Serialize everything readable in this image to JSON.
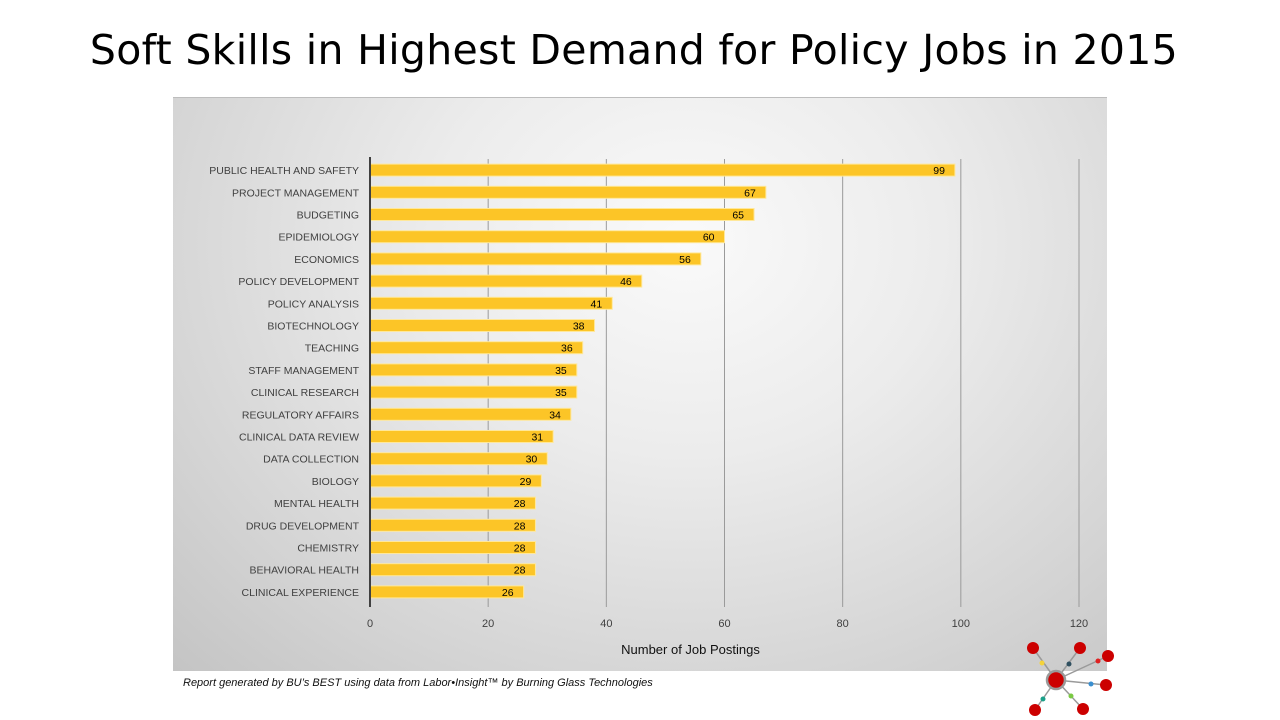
{
  "page": {
    "title": "Soft Skills in Highest Demand for Policy Jobs in 2015",
    "footer": "Report generated by BU’s BEST using data from Labor•Insight™ by Burning Glass Technologies",
    "logo_icon": "network-hub-icon"
  },
  "colors": {
    "bar": "#FCC527",
    "bar_border": "#FFE89A",
    "axis": "#404040",
    "gridline": "#9a9a9a",
    "label_text": "#404040",
    "value_text": "#000000"
  },
  "chart_data": {
    "type": "bar",
    "orientation": "horizontal",
    "title": "Soft Skills in Highest Demand for Policy Jobs in 2015",
    "xlabel": "Number of Job Postings",
    "ylabel": "",
    "xlim": [
      0,
      120
    ],
    "xticks": [
      0,
      20,
      40,
      60,
      80,
      100,
      120
    ],
    "grid": true,
    "legend": "none",
    "categories": [
      "PUBLIC HEALTH AND SAFETY",
      "PROJECT MANAGEMENT",
      "BUDGETING",
      "EPIDEMIOLOGY",
      "ECONOMICS",
      "POLICY DEVELOPMENT",
      "POLICY ANALYSIS",
      "BIOTECHNOLOGY",
      "TEACHING",
      "STAFF MANAGEMENT",
      "CLINICAL RESEARCH",
      "REGULATORY AFFAIRS",
      "CLINICAL DATA REVIEW",
      "DATA COLLECTION",
      "BIOLOGY",
      "MENTAL HEALTH",
      "DRUG DEVELOPMENT",
      "CHEMISTRY",
      "BEHAVIORAL HEALTH",
      "CLINICAL EXPERIENCE"
    ],
    "values": [
      99,
      67,
      65,
      60,
      56,
      46,
      41,
      38,
      36,
      35,
      35,
      34,
      31,
      30,
      29,
      28,
      28,
      28,
      28,
      26
    ]
  }
}
